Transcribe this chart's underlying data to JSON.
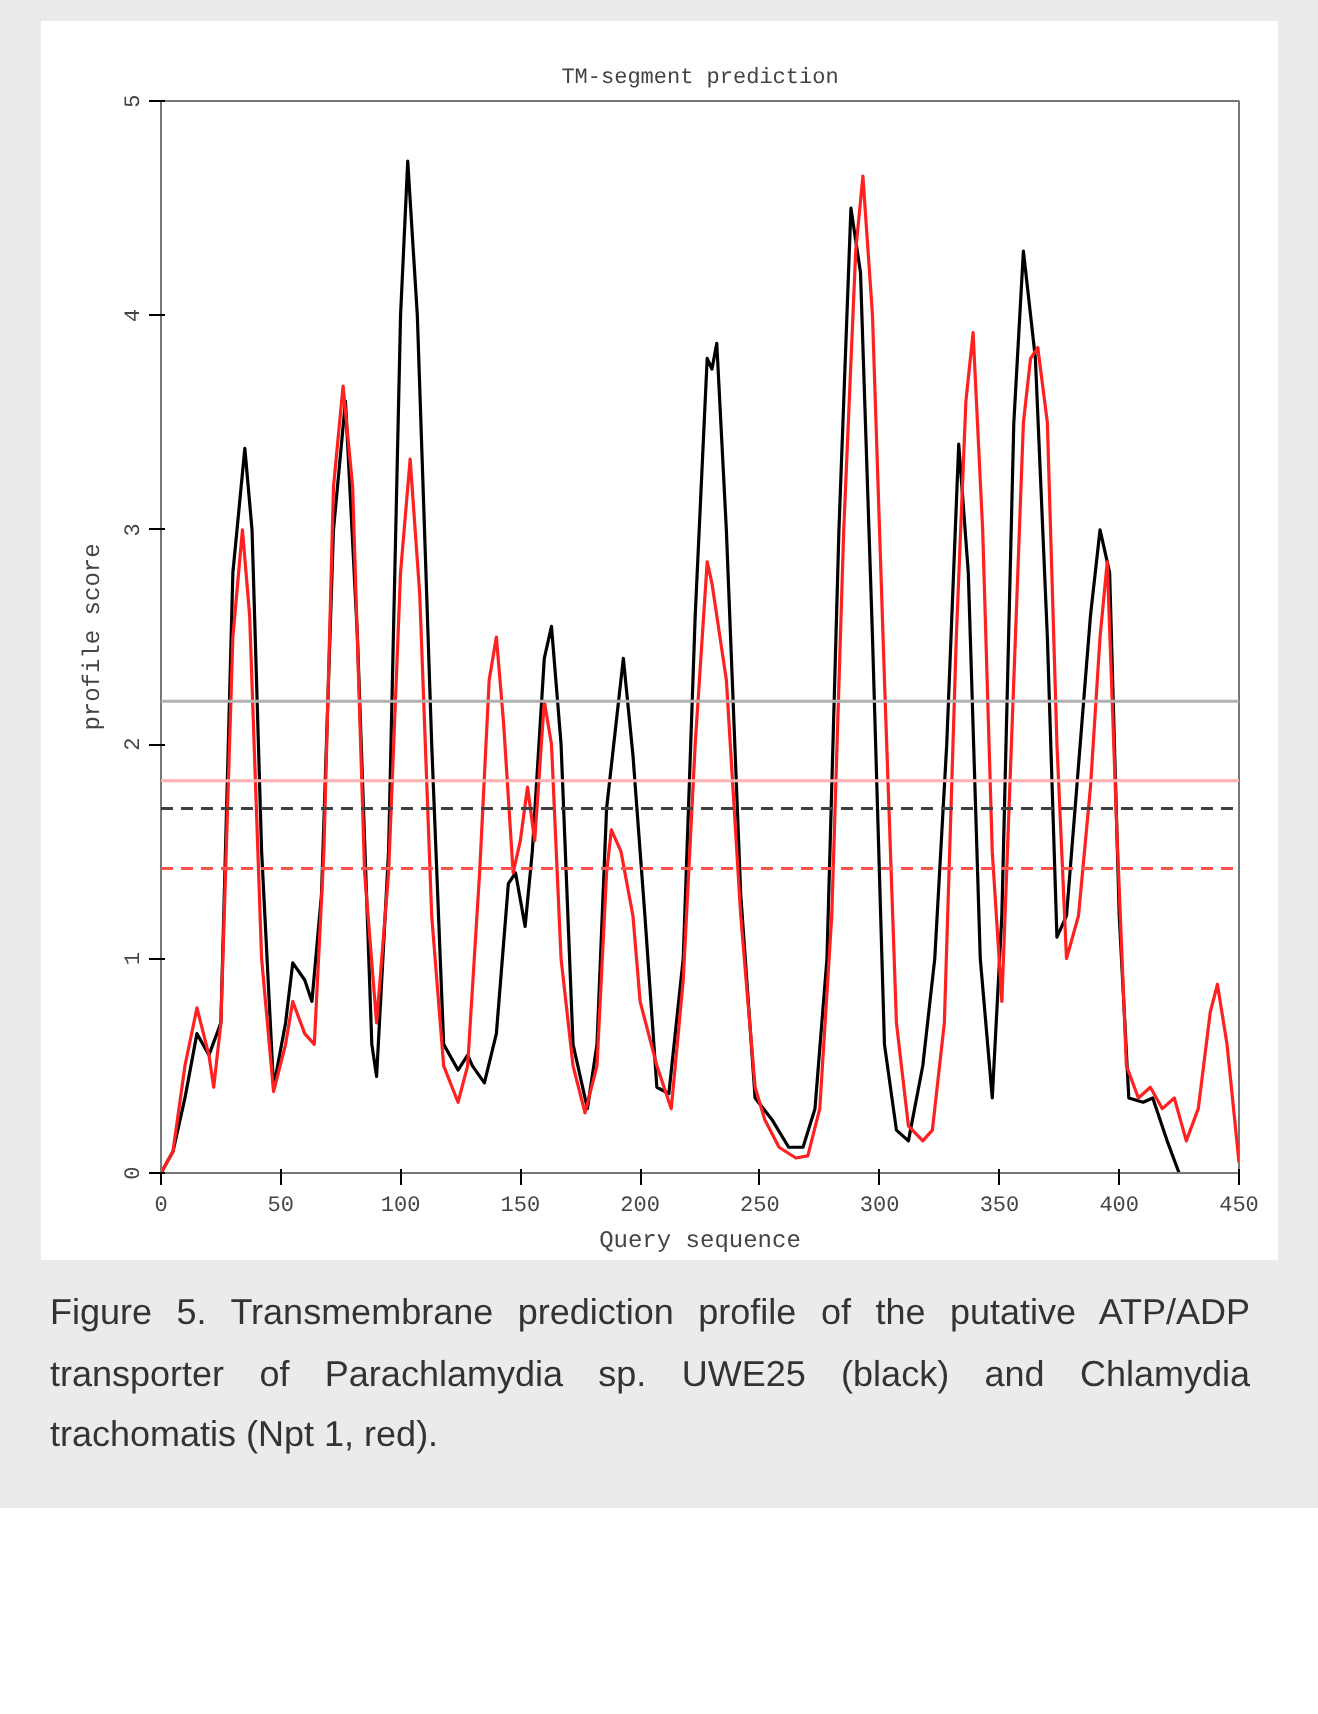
{
  "chart_data": {
    "type": "line",
    "title": "TM-segment prediction",
    "xlabel": "Query sequence",
    "ylabel": "profile score",
    "xlim": [
      0,
      450
    ],
    "ylim": [
      0,
      5
    ],
    "xticks": [
      0,
      50,
      100,
      150,
      200,
      250,
      300,
      350,
      400,
      450
    ],
    "yticks": [
      0,
      1,
      2,
      3,
      4,
      5
    ],
    "grid": false,
    "marker": "none",
    "line_style": "solid",
    "series": [
      {
        "color": "#000000",
        "x": [
          0,
          5,
          10,
          15,
          20,
          25,
          30,
          35,
          38,
          42,
          47,
          52,
          55,
          60,
          63,
          67,
          72,
          77,
          82,
          88,
          90,
          95,
          100,
          103,
          107,
          113,
          118,
          124,
          128,
          130,
          135,
          140,
          145,
          148,
          152,
          155,
          160,
          163,
          167,
          172,
          178,
          182,
          186,
          190,
          193,
          197,
          202,
          207,
          212,
          218,
          223,
          228,
          230,
          232,
          236,
          242,
          248,
          255,
          262,
          268,
          273,
          278,
          283,
          288,
          292,
          297,
          302,
          307,
          312,
          318,
          323,
          328,
          333,
          337,
          342,
          347,
          351,
          356,
          360,
          365,
          370,
          374,
          378,
          383,
          388,
          392,
          396,
          400,
          404,
          410,
          414,
          420,
          425
        ],
        "values": [
          0,
          0.1,
          0.35,
          0.65,
          0.55,
          0.7,
          2.8,
          3.38,
          3.0,
          1.5,
          0.4,
          0.7,
          0.98,
          0.9,
          0.8,
          1.3,
          3.0,
          3.6,
          2.5,
          0.6,
          0.45,
          1.5,
          4.0,
          4.72,
          4.0,
          2.0,
          0.6,
          0.48,
          0.55,
          0.5,
          0.42,
          0.65,
          1.35,
          1.4,
          1.15,
          1.5,
          2.4,
          2.55,
          2.0,
          0.6,
          0.3,
          0.6,
          1.7,
          2.1,
          2.4,
          1.95,
          1.2,
          0.4,
          0.37,
          1.0,
          2.6,
          3.8,
          3.75,
          3.87,
          3.0,
          1.3,
          0.35,
          0.25,
          0.12,
          0.12,
          0.3,
          1.0,
          3.0,
          4.5,
          4.2,
          2.5,
          0.6,
          0.2,
          0.15,
          0.5,
          1.0,
          2.0,
          3.4,
          2.8,
          1.0,
          0.35,
          1.2,
          3.5,
          4.3,
          3.8,
          2.5,
          1.1,
          1.2,
          1.9,
          2.6,
          3.0,
          2.8,
          1.2,
          0.35,
          0.33,
          0.35,
          0.15,
          0
        ]
      },
      {
        "color": "#ff2020",
        "x": [
          0,
          5,
          10,
          15,
          20,
          22,
          25,
          30,
          34,
          37,
          42,
          47,
          52,
          55,
          60,
          64,
          68,
          72,
          76,
          80,
          85,
          90,
          95,
          100,
          104,
          108,
          113,
          118,
          124,
          128,
          133,
          137,
          140,
          143,
          147,
          150,
          153,
          156,
          160,
          163,
          167,
          172,
          177,
          182,
          186,
          188,
          192,
          197,
          200,
          207,
          213,
          218,
          223,
          228,
          230,
          236,
          242,
          248,
          252,
          258,
          265,
          270,
          275,
          280,
          285,
          290,
          293,
          297,
          302,
          307,
          312,
          318,
          322,
          327,
          332,
          336,
          339,
          343,
          347,
          351,
          355,
          360,
          363,
          366,
          370,
          374,
          378,
          383,
          388,
          392,
          395,
          399,
          403,
          408,
          413,
          418,
          423,
          428,
          433,
          438,
          441,
          445,
          450
        ],
        "values": [
          0,
          0.1,
          0.5,
          0.77,
          0.55,
          0.4,
          0.7,
          2.5,
          3.0,
          2.6,
          1.0,
          0.38,
          0.6,
          0.8,
          0.65,
          0.6,
          1.5,
          3.2,
          3.67,
          3.2,
          1.4,
          0.7,
          1.4,
          2.8,
          3.33,
          2.7,
          1.2,
          0.5,
          0.33,
          0.5,
          1.4,
          2.3,
          2.5,
          2.1,
          1.4,
          1.55,
          1.8,
          1.55,
          2.2,
          2.0,
          1.0,
          0.5,
          0.28,
          0.5,
          1.4,
          1.6,
          1.5,
          1.2,
          0.8,
          0.5,
          0.3,
          0.9,
          2.0,
          2.85,
          2.75,
          2.3,
          1.2,
          0.4,
          0.25,
          0.12,
          0.07,
          0.08,
          0.3,
          1.2,
          3.0,
          4.3,
          4.65,
          4.0,
          2.3,
          0.7,
          0.22,
          0.15,
          0.2,
          0.7,
          2.5,
          3.6,
          3.92,
          3.0,
          1.5,
          0.8,
          2.0,
          3.5,
          3.8,
          3.85,
          3.5,
          2.0,
          1.0,
          1.2,
          1.8,
          2.5,
          2.85,
          1.6,
          0.5,
          0.35,
          0.4,
          0.3,
          0.35,
          0.15,
          0.3,
          0.75,
          0.88,
          0.6,
          0.05
        ]
      }
    ],
    "ref_lines": [
      {
        "axis": "y",
        "value": 2.2,
        "color": "#b0b0b0",
        "line_style": "solid"
      },
      {
        "axis": "y",
        "value": 1.83,
        "color": "#ffb0b0",
        "line_style": "solid"
      },
      {
        "axis": "y",
        "value": 1.7,
        "color": "#404040",
        "line_style": "dashed"
      },
      {
        "axis": "y",
        "value": 1.42,
        "color": "#ff5050",
        "line_style": "dashed"
      }
    ],
    "annotations": [
      "Figure 5. Transmembrane prediction profile of the putative ATP/ADP transporter of Parachlamydia sp. UWE25 (black) and Chlamydia trachomatis (Npt 1, red)."
    ]
  }
}
